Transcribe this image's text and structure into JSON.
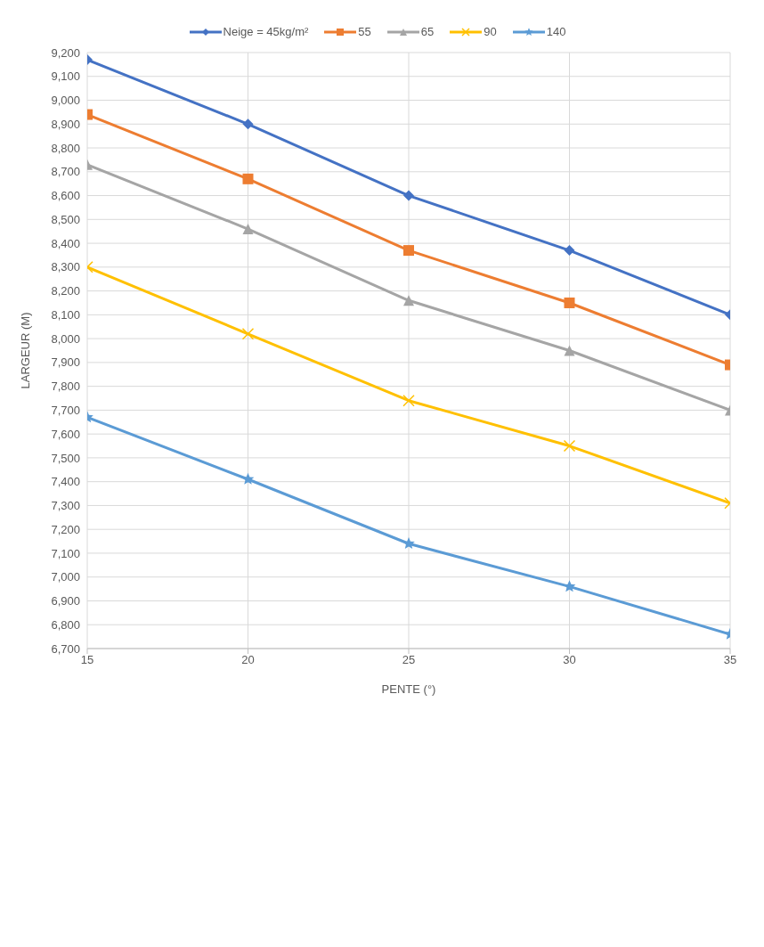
{
  "chart_data": {
    "type": "line",
    "xlabel": "PENTE (°)",
    "ylabel": "LARGEUR (M)",
    "x": [
      15,
      20,
      25,
      30,
      35
    ],
    "xlim": [
      15,
      35
    ],
    "xticks": [
      15,
      20,
      25,
      30,
      35
    ],
    "ylim": [
      6700,
      9200
    ],
    "yticks": [
      {
        "value": 6700,
        "label": "6,700"
      },
      {
        "value": 6800,
        "label": "6,800"
      },
      {
        "value": 6900,
        "label": "6,900"
      },
      {
        "value": 7000,
        "label": "7,000"
      },
      {
        "value": 7100,
        "label": "7,100"
      },
      {
        "value": 7200,
        "label": "7,200"
      },
      {
        "value": 7300,
        "label": "7,300"
      },
      {
        "value": 7400,
        "label": "7,400"
      },
      {
        "value": 7500,
        "label": "7,500"
      },
      {
        "value": 7600,
        "label": "7,600"
      },
      {
        "value": 7700,
        "label": "7,700"
      },
      {
        "value": 7800,
        "label": "7,800"
      },
      {
        "value": 7900,
        "label": "7,900"
      },
      {
        "value": 8000,
        "label": "8,000"
      },
      {
        "value": 8100,
        "label": "8,100"
      },
      {
        "value": 8200,
        "label": "8,200"
      },
      {
        "value": 8300,
        "label": "8,300"
      },
      {
        "value": 8400,
        "label": "8,400"
      },
      {
        "value": 8500,
        "label": "8,500"
      },
      {
        "value": 8600,
        "label": "8,600"
      },
      {
        "value": 8700,
        "label": "8,700"
      },
      {
        "value": 8800,
        "label": "8,800"
      },
      {
        "value": 8900,
        "label": "8,900"
      },
      {
        "value": 9000,
        "label": "9,000"
      },
      {
        "value": 9100,
        "label": "9,100"
      },
      {
        "value": 9200,
        "label": "9,200"
      }
    ],
    "grid": true,
    "legend": "top",
    "series": [
      {
        "name": "Neige = 45kg/m²",
        "color": "#4472c4",
        "marker": "diamond",
        "values": [
          9170,
          8900,
          8600,
          8370,
          8100
        ]
      },
      {
        "name": "55",
        "color": "#ed7d31",
        "marker": "square",
        "values": [
          8940,
          8670,
          8370,
          8150,
          7890
        ]
      },
      {
        "name": "65",
        "color": "#a5a5a5",
        "marker": "triangle",
        "values": [
          8730,
          8460,
          8160,
          7950,
          7700
        ]
      },
      {
        "name": "90",
        "color": "#ffc000",
        "marker": "cross",
        "values": [
          8300,
          8020,
          7740,
          7550,
          7310
        ]
      },
      {
        "name": "140",
        "color": "#5b9bd5",
        "marker": "star",
        "values": [
          7670,
          7410,
          7140,
          6960,
          6760
        ]
      }
    ]
  }
}
